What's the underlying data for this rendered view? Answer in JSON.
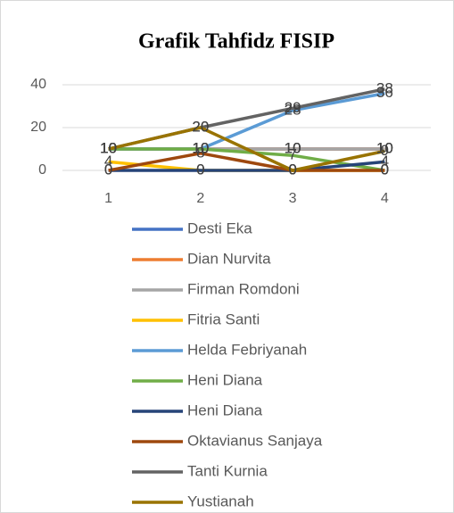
{
  "chart_data": {
    "type": "line",
    "title": "Grafik Tahfidz FISIP",
    "categories": [
      "1",
      "2",
      "3",
      "4"
    ],
    "ylim": [
      0,
      45
    ],
    "yticks": [
      0,
      20,
      40
    ],
    "grid": true,
    "series": [
      {
        "name": "Desti Eka",
        "color": "#4472c4",
        "values": [
          10,
          10,
          10,
          10
        ]
      },
      {
        "name": "Dian Nurvita",
        "color": "#ed7d31",
        "values": [
          10,
          10,
          10,
          10
        ]
      },
      {
        "name": "Firman Romdoni",
        "color": "#a5a5a5",
        "values": [
          10,
          10,
          10,
          10
        ]
      },
      {
        "name": "Fitria Santi",
        "color": "#ffc000",
        "values": [
          4,
          0,
          0,
          0
        ]
      },
      {
        "name": "Helda Febriyanah",
        "color": "#5b9bd5",
        "values": [
          10,
          10,
          28,
          36
        ]
      },
      {
        "name": "Heni Diana",
        "color": "#70ad47",
        "values": [
          10,
          10,
          7,
          0
        ]
      },
      {
        "name": "Heni Diana",
        "color": "#264478",
        "values": [
          0,
          0,
          0,
          4
        ]
      },
      {
        "name": "Oktavianus Sanjaya",
        "color": "#9e480e",
        "values": [
          0,
          8,
          0,
          0
        ]
      },
      {
        "name": "Tanti Kurnia",
        "color": "#636363",
        "values": [
          10,
          20,
          29,
          38
        ]
      },
      {
        "name": "Yustianah",
        "color": "#997300",
        "values": [
          10,
          20,
          0,
          9
        ]
      }
    ]
  }
}
